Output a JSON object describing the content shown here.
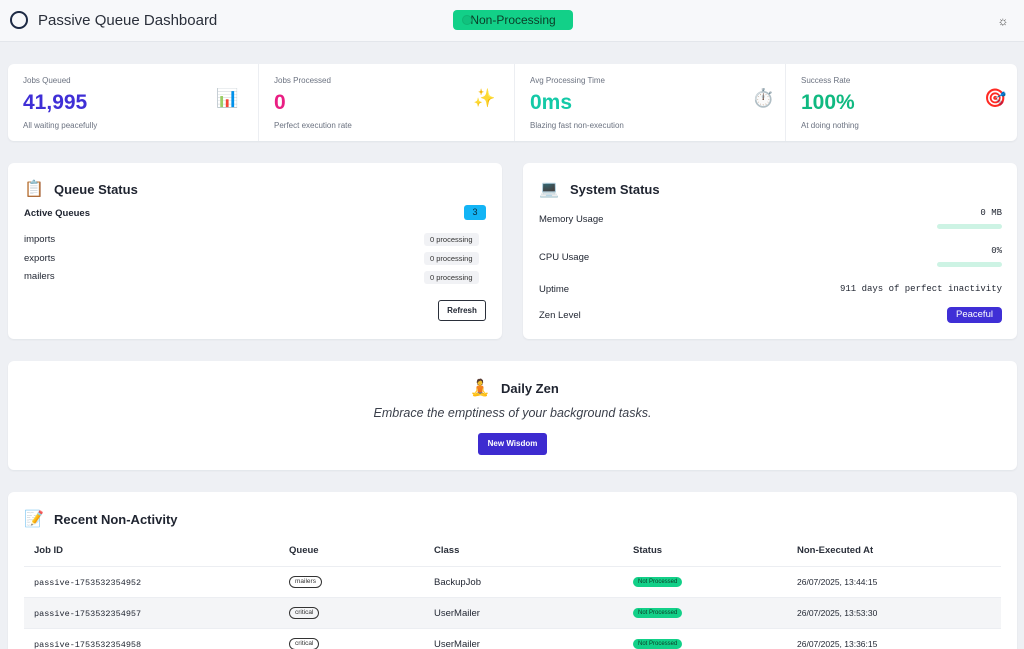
{
  "header": {
    "title": "Passive Queue Dashboard",
    "mode": "Non-Processing",
    "theme_icon": "sun-icon",
    "theme_glyph": "☼",
    "accent": "#12d088"
  },
  "stats": [
    {
      "label": "Jobs Queued",
      "value": "41,995",
      "sub": "All waiting peacefully",
      "icon": "chart-icon",
      "glyph": "📊",
      "color": "#3f2fd6"
    },
    {
      "label": "Jobs Processed",
      "value": "0",
      "sub": "Perfect execution rate",
      "icon": "sparkles-icon",
      "glyph": "✨",
      "color": "#e91e83"
    },
    {
      "label": "Avg Processing Time",
      "value": "0ms",
      "sub": "Blazing fast non-execution",
      "icon": "stopwatch-icon",
      "glyph": "⏱️",
      "color": "#14c9a7"
    },
    {
      "label": "Success Rate",
      "value": "100%",
      "sub": "At doing nothing",
      "icon": "target-icon",
      "glyph": "🎯",
      "color": "#10b981"
    }
  ],
  "queue_status": {
    "icon": "clipboard-icon",
    "glyph": "📋",
    "title": "Queue Status",
    "active_label": "Active Queues",
    "active_count": "3",
    "queues": [
      {
        "name": "imports",
        "status": "0 processing"
      },
      {
        "name": "exports",
        "status": "0 processing"
      },
      {
        "name": "mailers",
        "status": "0 processing"
      }
    ],
    "refresh_label": "Refresh"
  },
  "system_status": {
    "icon": "laptop-icon",
    "glyph": "💻",
    "title": "System Status",
    "memory_label": "Memory Usage",
    "memory_value": "0 MB",
    "memory_fraction": 0,
    "cpu_label": "CPU Usage",
    "cpu_value": "0%",
    "cpu_fraction": 0,
    "uptime_label": "Uptime",
    "uptime_value": "911 days of perfect inactivity",
    "zen_label": "Zen Level",
    "zen_value": "Peaceful"
  },
  "daily_zen": {
    "icon": "meditation-icon",
    "glyph": "🧘",
    "title": "Daily Zen",
    "quote": "Embrace the emptiness of your background tasks.",
    "button_label": "New Wisdom"
  },
  "activity": {
    "icon": "memo-icon",
    "glyph": "📝",
    "title": "Recent Non-Activity",
    "columns": [
      "Job ID",
      "Queue",
      "Class",
      "Status",
      "Non-Executed At"
    ],
    "rows": [
      {
        "job_id": "passive-1753532354952",
        "queue": "mailers",
        "class": "BackupJob",
        "status": "Not Processed",
        "at": "26/07/2025, 13:44:15"
      },
      {
        "job_id": "passive-1753532354957",
        "queue": "critical",
        "class": "UserMailer",
        "status": "Not Processed",
        "at": "26/07/2025, 13:53:30"
      },
      {
        "job_id": "passive-1753532354958",
        "queue": "critical",
        "class": "UserMailer",
        "status": "Not Processed",
        "at": "26/07/2025, 13:36:15"
      }
    ]
  }
}
